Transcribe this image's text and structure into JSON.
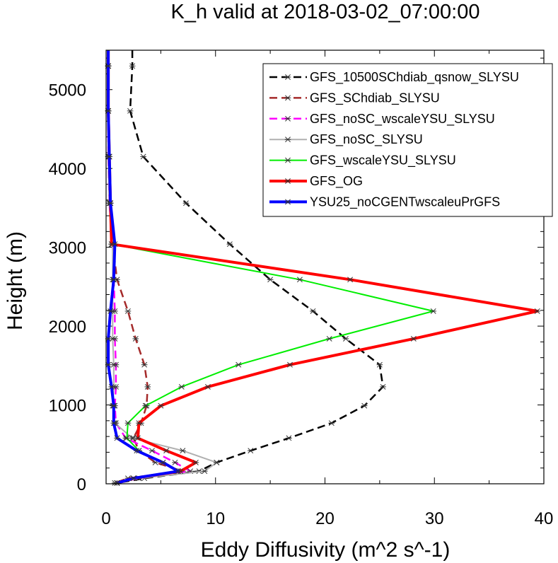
{
  "chart_data": {
    "type": "line",
    "title": "K_h valid at 2018-03-02_07:00:00",
    "xlabel": "Eddy Diffusivity (m^2 s^-1)",
    "ylabel": "Height (m)",
    "xlim": [
      0,
      40
    ],
    "ylim": [
      0,
      5500
    ],
    "xticks": [
      "0",
      "10",
      "20",
      "30",
      "40"
    ],
    "yticks": [
      "0",
      "1000",
      "2000",
      "3000",
      "4000",
      "5000"
    ],
    "xtick_values": [
      0,
      10,
      20,
      30,
      40
    ],
    "ytick_values": [
      0,
      1000,
      2000,
      3000,
      4000,
      5000
    ],
    "legend_position": "top-right",
    "series": [
      {
        "name": "GFS_10500SChdiab_qsnow_SLYSU",
        "color": "#000000",
        "dash": "dashed",
        "width": 2.5,
        "x": [
          2.4,
          2.4,
          2.2,
          3.4,
          7.3,
          11.3,
          15.0,
          18.9,
          21.9,
          25.0,
          25.3,
          23.6,
          20.6,
          16.7,
          13.2,
          10.1,
          8.5,
          3.5,
          1.0
        ],
        "y": [
          5500,
          5300,
          4730,
          4150,
          3560,
          3040,
          2590,
          2190,
          1840,
          1510,
          1230,
          990,
          770,
          580,
          420,
          270,
          160,
          70,
          10
        ]
      },
      {
        "name": "GFS_SChdiab_SLYSU",
        "color": "#a52a2a",
        "dash": "dashed",
        "width": 2.5,
        "x": [
          0.2,
          0.2,
          0.2,
          0.3,
          0.4,
          0.6,
          1.0,
          2.0,
          2.7,
          3.5,
          3.8,
          3.7,
          3.2,
          2.5,
          3.0,
          4.5,
          7.0,
          2.0,
          0.8
        ],
        "y": [
          5500,
          5300,
          4730,
          4150,
          3560,
          3040,
          2590,
          2190,
          1840,
          1510,
          1230,
          990,
          770,
          580,
          420,
          270,
          160,
          70,
          10
        ]
      },
      {
        "name": "GFS_noSC_wscaleYSU_SLYSU",
        "color": "#ff00ff",
        "dash": "dashed",
        "width": 2.5,
        "x": [
          0.2,
          0.2,
          0.2,
          0.2,
          0.3,
          0.6,
          0.7,
          0.8,
          0.8,
          0.9,
          0.9,
          0.8,
          0.9,
          1.8,
          4.2,
          6.3,
          7.7,
          3.0,
          1.0
        ],
        "y": [
          5500,
          5300,
          4730,
          4150,
          3560,
          3040,
          2590,
          2190,
          1840,
          1510,
          1230,
          990,
          770,
          580,
          420,
          270,
          160,
          70,
          10
        ]
      },
      {
        "name": "GFS_noSC_SLYSU",
        "color": "#b0b0b0",
        "dash": "solid",
        "width": 2,
        "x": [
          0.2,
          0.2,
          0.2,
          0.2,
          0.3,
          0.6,
          0.6,
          0.6,
          0.6,
          0.7,
          0.7,
          0.6,
          0.8,
          2.4,
          7.0,
          10.1,
          9.0,
          3.0,
          1.0
        ],
        "y": [
          5500,
          5300,
          4730,
          4150,
          3560,
          3040,
          2590,
          2190,
          1840,
          1510,
          1230,
          990,
          770,
          580,
          420,
          270,
          160,
          70,
          10
        ]
      },
      {
        "name": "GFS_wscaleYSU_SLYSU",
        "color": "#00ee00",
        "dash": "solid",
        "width": 2,
        "x": [
          0.2,
          0.2,
          0.2,
          0.3,
          0.4,
          0.5,
          17.7,
          29.9,
          20.4,
          12.1,
          6.9,
          3.6,
          2.0,
          1.9,
          3.0,
          5.2,
          6.5,
          2.5,
          1.0
        ],
        "y": [
          5500,
          5300,
          4730,
          4150,
          3560,
          3040,
          2590,
          2190,
          1840,
          1510,
          1230,
          990,
          770,
          580,
          420,
          270,
          160,
          70,
          10
        ]
      },
      {
        "name": "GFS_OG",
        "color": "#ff0000",
        "dash": "solid",
        "width": 4,
        "x": [
          0.2,
          0.2,
          0.2,
          0.3,
          0.4,
          0.5,
          22.3,
          39.4,
          28.1,
          16.8,
          9.3,
          5.0,
          3.0,
          2.9,
          5.5,
          8.2,
          6.8,
          2.5,
          1.0
        ],
        "y": [
          5500,
          5300,
          4730,
          4150,
          3560,
          3040,
          2590,
          2190,
          1840,
          1510,
          1230,
          990,
          770,
          580,
          420,
          270,
          160,
          70,
          10
        ]
      },
      {
        "name": "YSU25_noCGENTwscaleuPrGFS",
        "color": "#0000ff",
        "dash": "solid",
        "width": 4,
        "x": [
          0.2,
          0.2,
          0.2,
          0.3,
          0.4,
          0.8,
          0.7,
          0.4,
          0.2,
          0.2,
          0.5,
          0.7,
          0.7,
          1.0,
          2.8,
          5.2,
          6.6,
          2.5,
          1.0
        ],
        "y": [
          5500,
          5300,
          4730,
          4150,
          3560,
          3040,
          2590,
          2190,
          1840,
          1510,
          1230,
          990,
          770,
          580,
          420,
          270,
          160,
          70,
          10
        ]
      }
    ]
  }
}
